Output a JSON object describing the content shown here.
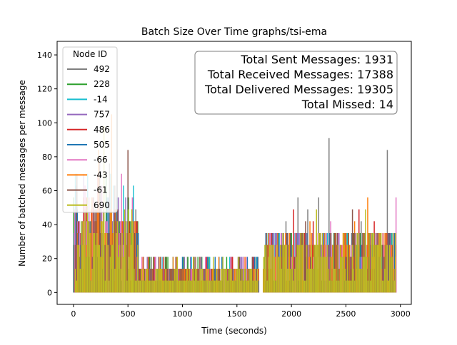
{
  "chart_data": {
    "type": "bar",
    "title": "Batch Size Over Time graphs/tsi-ema",
    "xlabel": "Time (seconds)",
    "ylabel": "Number of batched messages per message",
    "xlim": [
      -150,
      3100
    ],
    "ylim": [
      -7,
      148
    ],
    "xticks": [
      0,
      500,
      1000,
      1500,
      2000,
      2500,
      3000
    ],
    "yticks": [
      0,
      20,
      40,
      60,
      80,
      100,
      120,
      140
    ],
    "grid": false,
    "legend": {
      "title": "Node ID",
      "placement": "upper left"
    },
    "series": [
      {
        "name": "492",
        "color": "#7f7f7f",
        "peaks": [
          [
            100,
            35
          ],
          [
            250,
            63
          ],
          [
            330,
            76
          ],
          [
            1950,
            42
          ],
          [
            2060,
            56
          ],
          [
            2150,
            49
          ],
          [
            2250,
            56
          ],
          [
            2345,
            91
          ],
          [
            2640,
            42
          ],
          [
            2880,
            84
          ]
        ]
      },
      {
        "name": "228",
        "color": "#2ca02c",
        "peaks": [
          [
            150,
            42
          ],
          [
            300,
            70
          ],
          [
            700,
            21
          ],
          [
            1050,
            21
          ],
          [
            2000,
            35
          ],
          [
            2400,
            35
          ]
        ]
      },
      {
        "name": "-14",
        "color": "#17becf",
        "peaks": [
          [
            130,
            70
          ],
          [
            820,
            21
          ],
          [
            1250,
            21
          ],
          [
            2100,
            28
          ]
        ]
      },
      {
        "name": "757",
        "color": "#9467bd",
        "peaks": [
          [
            200,
            42
          ],
          [
            470,
            42
          ],
          [
            900,
            14
          ],
          [
            1820,
            35
          ],
          [
            2500,
            35
          ]
        ]
      },
      {
        "name": "486",
        "color": "#d62728",
        "peaks": [
          [
            120,
            56
          ],
          [
            380,
            49
          ],
          [
            580,
            42
          ],
          [
            1500,
            14
          ],
          [
            2020,
            49
          ],
          [
            2200,
            42
          ],
          [
            2620,
            49
          ],
          [
            2760,
            42
          ]
        ]
      },
      {
        "name": "505",
        "color": "#1f77b4",
        "peaks": [
          [
            180,
            42
          ],
          [
            400,
            42
          ],
          [
            1000,
            21
          ],
          [
            1300,
            21
          ],
          [
            2300,
            35
          ]
        ]
      },
      {
        "name": "-66",
        "color": "#e377c2",
        "peaks": [
          [
            260,
            63
          ],
          [
            1600,
            14
          ],
          [
            2360,
            42
          ],
          [
            2960,
            56
          ]
        ]
      },
      {
        "name": "-43",
        "color": "#ff7f0e",
        "peaks": [
          [
            230,
            84
          ],
          [
            350,
            105
          ],
          [
            2170,
            42
          ],
          [
            2580,
            42
          ],
          [
            2700,
            56
          ]
        ]
      },
      {
        "name": "-61",
        "color": "#8c564b",
        "peaks": [
          [
            240,
            77
          ],
          [
            500,
            84
          ],
          [
            2130,
            42
          ],
          [
            2560,
            49
          ]
        ]
      },
      {
        "name": "690",
        "color": "#bcbd22",
        "peaks": [
          [
            280,
            98
          ],
          [
            540,
            42
          ],
          [
            1100,
            21
          ],
          [
            2230,
            49
          ],
          [
            2680,
            49
          ]
        ]
      }
    ],
    "time_range": [
      0,
      2960
    ],
    "gap_range": [
      1700,
      1740
    ]
  },
  "stats_box": {
    "sent": "Total Sent Messages: 1931",
    "received": "Total Received Messages: 17388",
    "delivered": "Total Delivered Messages: 19305",
    "missed": "Total Missed: 14"
  }
}
